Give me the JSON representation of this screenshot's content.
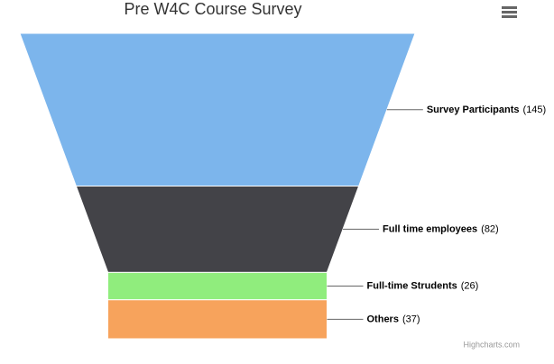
{
  "chart_data": {
    "type": "funnel",
    "title": "Pre W4C Course Survey",
    "categories": [
      "Survey Participants",
      "Full time employees",
      "Full-time Strudents",
      "Others"
    ],
    "values": [
      145,
      82,
      26,
      37
    ],
    "value_labels": [
      "(145)",
      "(82)",
      "(26)",
      "(37)"
    ],
    "colors": [
      "#7cb5ec",
      "#434348",
      "#90ed7d",
      "#f7a35c"
    ],
    "credits": "Highcharts.com"
  }
}
